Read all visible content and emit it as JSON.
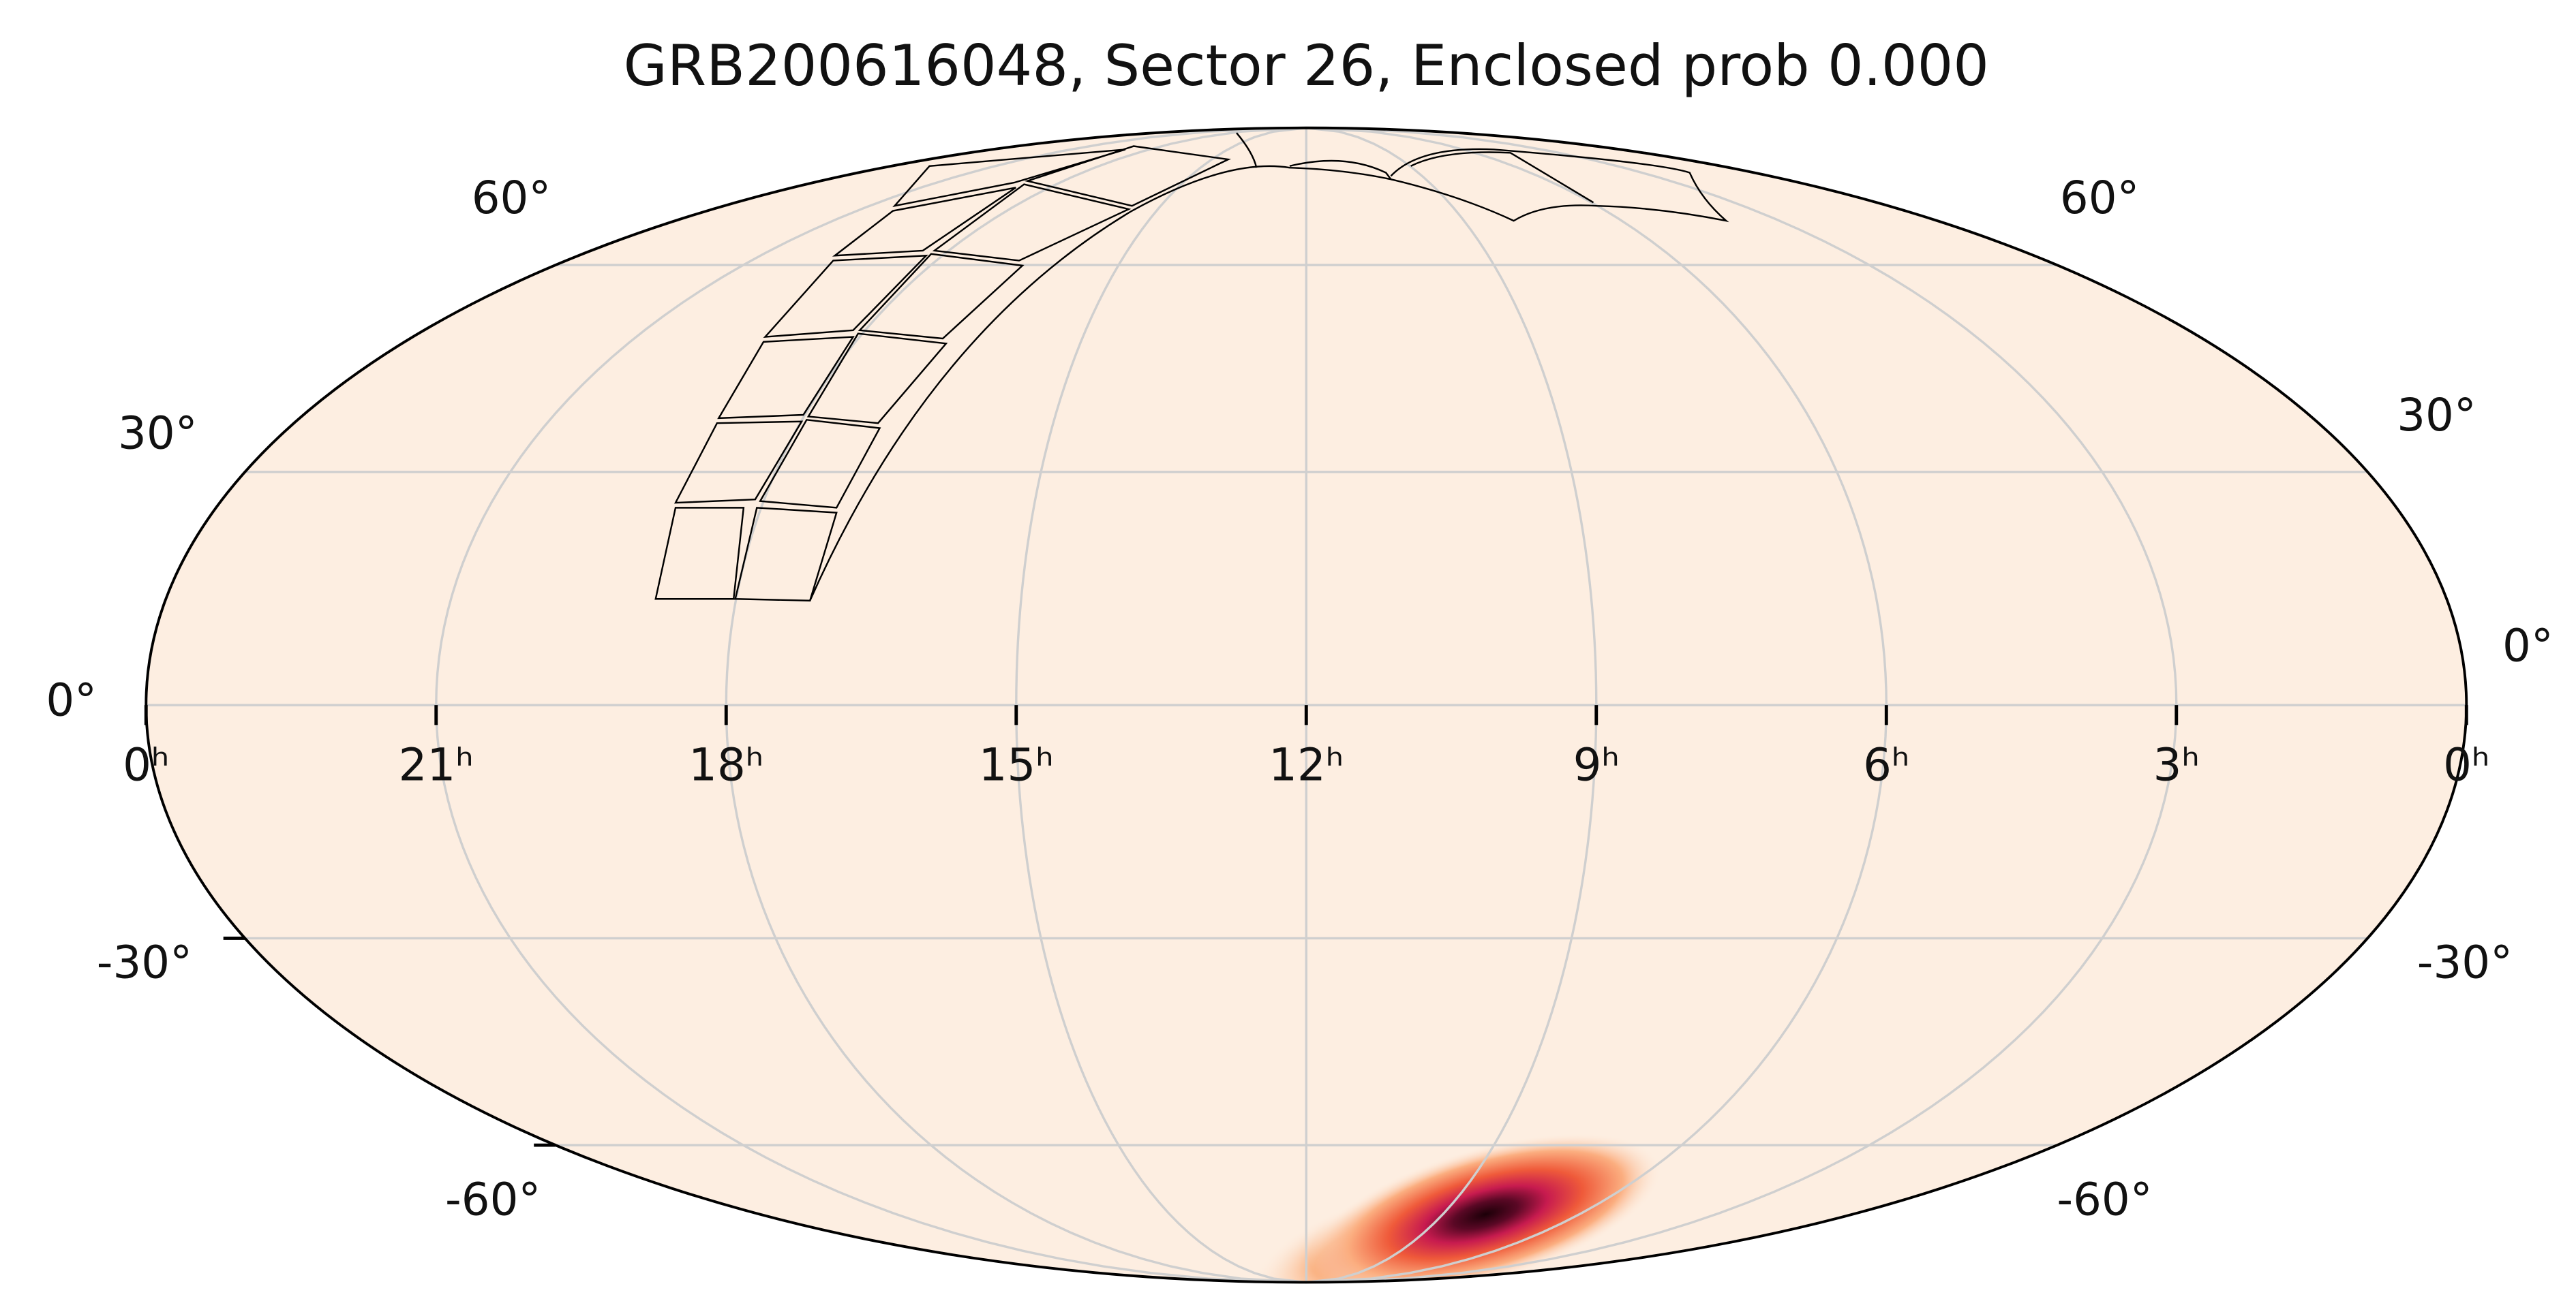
{
  "title": "GRB200616048, Sector 26, Enclosed prob 0.000",
  "ra_ticks": [
    {
      "value": 24,
      "label": "0ʰ"
    },
    {
      "value": 21,
      "label": "21ʰ"
    },
    {
      "value": 18,
      "label": "18ʰ"
    },
    {
      "value": 15,
      "label": "15ʰ"
    },
    {
      "value": 12,
      "label": "12ʰ"
    },
    {
      "value": 9,
      "label": "9ʰ"
    },
    {
      "value": 6,
      "label": "6ʰ"
    },
    {
      "value": 3,
      "label": "3ʰ"
    },
    {
      "value": 0,
      "label": "0ʰ"
    }
  ],
  "dec_ticks": [
    {
      "value": 60,
      "label": "60°"
    },
    {
      "value": 30,
      "label": "30°"
    },
    {
      "value": 0,
      "label": "0°"
    },
    {
      "value": -30,
      "label": "-30°"
    },
    {
      "value": -60,
      "label": "-60°"
    }
  ]
}
